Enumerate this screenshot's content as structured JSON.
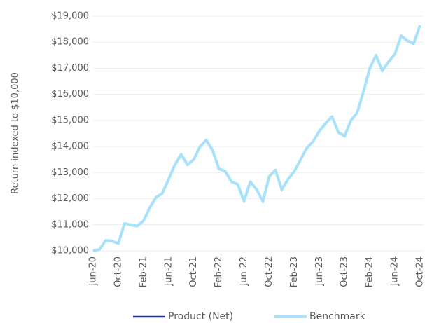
{
  "chart_data": {
    "type": "line",
    "y_label": "Return indexed to $10,000",
    "categories": [
      "Jun-20",
      null,
      null,
      null,
      "Oct-20",
      null,
      null,
      null,
      "Feb-21",
      null,
      null,
      null,
      "Jun-21",
      null,
      null,
      null,
      "Oct-21",
      null,
      null,
      null,
      "Feb-22",
      null,
      null,
      null,
      "Jun-22",
      null,
      null,
      null,
      "Oct-22",
      null,
      null,
      null,
      "Feb-23",
      null,
      null,
      null,
      "Jun-23",
      null,
      null,
      null,
      "Oct-23",
      null,
      null,
      null,
      "Feb-24",
      null,
      null,
      null,
      "Jun-24",
      null,
      null,
      null,
      "Oct-24"
    ],
    "series": [
      {
        "name": "Product (Net)",
        "color": "#1f2fb5",
        "values": [
          10000,
          10050,
          10400,
          10370,
          10270,
          11050,
          10990,
          10940,
          11140,
          11640,
          12040,
          12190,
          12740,
          13290,
          13690,
          13290,
          13490,
          13990,
          14240,
          13840,
          13140,
          13040,
          12640,
          12540,
          11880,
          12640,
          12330,
          11870,
          12830,
          13080,
          12320,
          12730,
          13030,
          13480,
          13930,
          14180,
          14580,
          14880,
          15130,
          14530,
          14380,
          14980,
          15280,
          16080,
          16980,
          17480,
          16880,
          17230,
          17530,
          18230,
          18030,
          17930,
          18630
        ]
      },
      {
        "name": "Benchmark",
        "color": "#a8e2fa",
        "values": [
          10000,
          10050,
          10400,
          10380,
          10280,
          11050,
          11000,
          10950,
          11150,
          11650,
          12050,
          12200,
          12750,
          13300,
          13700,
          13300,
          13500,
          14000,
          14250,
          13850,
          13150,
          13050,
          12650,
          12550,
          11900,
          12650,
          12350,
          11900,
          12850,
          13100,
          12350,
          12750,
          13050,
          13500,
          13950,
          14200,
          14600,
          14900,
          15150,
          14550,
          14400,
          15000,
          15300,
          16100,
          17000,
          17500,
          16900,
          17250,
          17550,
          18250,
          18050,
          17950,
          18650
        ]
      }
    ],
    "ylim": [
      10000,
      19000
    ],
    "yticks": [
      {
        "value": 10000,
        "label": "$10,000"
      },
      {
        "value": 11000,
        "label": "$11,000"
      },
      {
        "value": 12000,
        "label": "$12,000"
      },
      {
        "value": 13000,
        "label": "$13,000"
      },
      {
        "value": 14000,
        "label": "$14,000"
      },
      {
        "value": 15000,
        "label": "$15,000"
      },
      {
        "value": 16000,
        "label": "$16,000"
      },
      {
        "value": 17000,
        "label": "$17,000"
      },
      {
        "value": 18000,
        "label": "$18,000"
      },
      {
        "value": 19000,
        "label": "$19,000"
      }
    ],
    "grid": true,
    "legend": "bottom"
  }
}
